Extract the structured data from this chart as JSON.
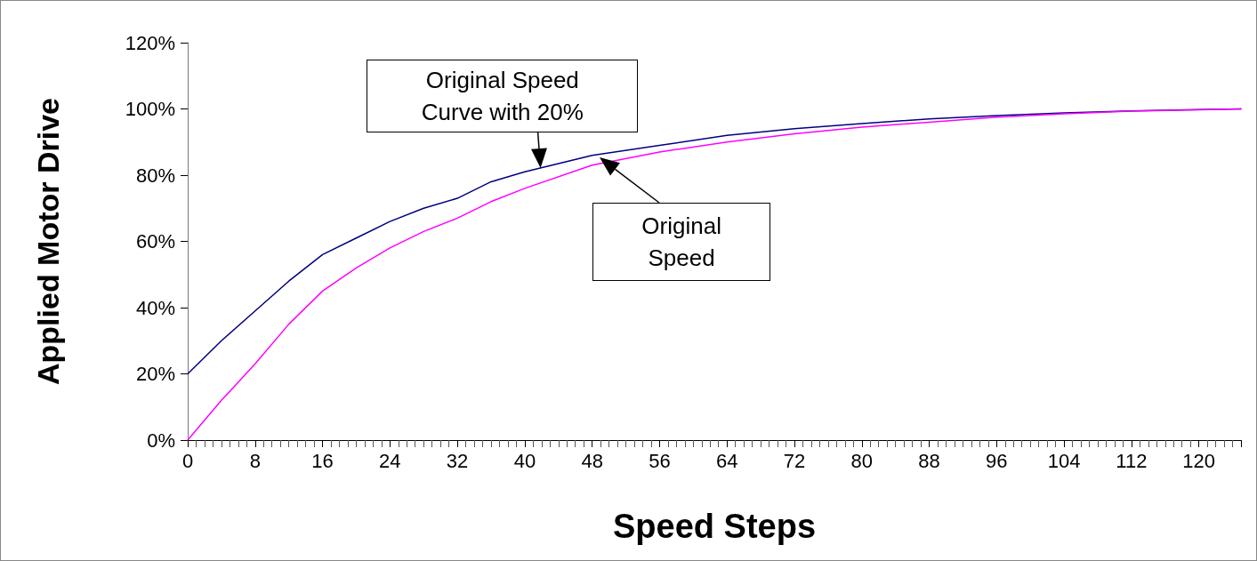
{
  "chart_data": {
    "type": "line",
    "xlabel": "Speed Steps",
    "ylabel": "Applied Motor Drive",
    "xlim": [
      0,
      125
    ],
    "xticks": [
      0,
      8,
      16,
      24,
      32,
      40,
      48,
      56,
      64,
      72,
      80,
      88,
      96,
      104,
      112,
      120
    ],
    "ylim": [
      0,
      120
    ],
    "yticks": [
      {
        "value": 0,
        "label": "0%"
      },
      {
        "value": 20,
        "label": "20%"
      },
      {
        "value": 40,
        "label": "40%"
      },
      {
        "value": 60,
        "label": "60%"
      },
      {
        "value": 80,
        "label": "80%"
      },
      {
        "value": 100,
        "label": "100%"
      },
      {
        "value": 120,
        "label": "120%"
      }
    ],
    "grid": false,
    "marker": "none",
    "line_style": "solid",
    "series": [
      {
        "color": "#000080",
        "x": [
          0,
          4,
          8,
          12,
          16,
          20,
          24,
          28,
          32,
          36,
          40,
          48,
          56,
          64,
          72,
          80,
          88,
          96,
          104,
          112,
          120,
          125
        ],
        "values": [
          20,
          30,
          39,
          48,
          56,
          61,
          66,
          70,
          73,
          78,
          81,
          86,
          89,
          92,
          94,
          95.6,
          97,
          98,
          98.8,
          99.4,
          99.8,
          100
        ]
      },
      {
        "color": "#ff00ff",
        "x": [
          0,
          4,
          8,
          12,
          16,
          20,
          24,
          28,
          32,
          36,
          40,
          48,
          56,
          64,
          72,
          80,
          88,
          96,
          104,
          112,
          120,
          125
        ],
        "values": [
          0,
          12,
          23,
          35,
          45,
          52,
          58,
          63,
          67,
          72,
          76,
          83,
          87,
          90,
          92.5,
          94.5,
          96,
          97.5,
          98.5,
          99.3,
          99.7,
          100
        ]
      }
    ],
    "annotations": [
      {
        "text": "Original Speed Curve with 20%",
        "x": 42,
        "y": 82
      },
      {
        "text": "Original Speed",
        "x": 49,
        "y": 85
      }
    ]
  }
}
